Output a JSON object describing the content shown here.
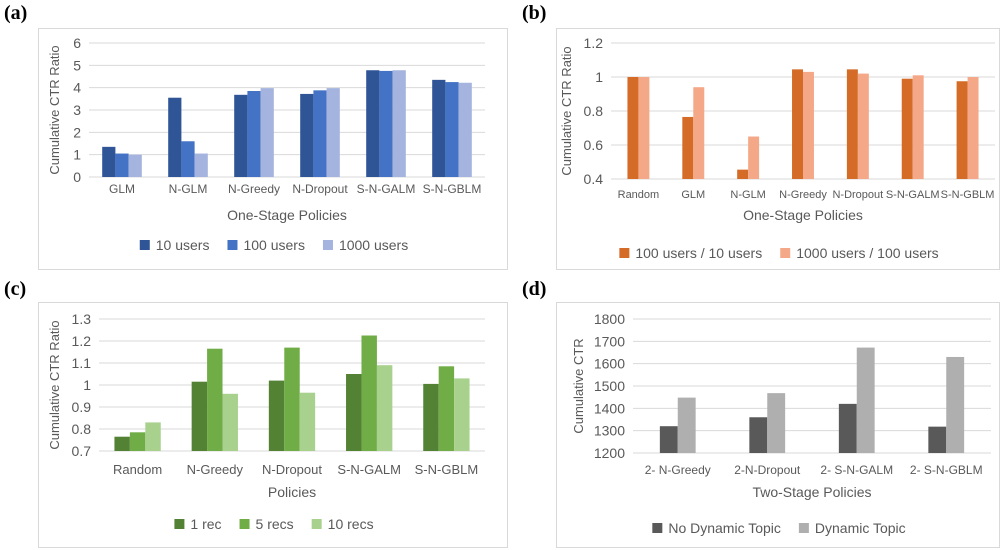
{
  "panels": [
    {
      "label": "(a)"
    },
    {
      "label": "(b)"
    },
    {
      "label": "(c)"
    },
    {
      "label": "(d)"
    }
  ],
  "chart_data": [
    {
      "type": "bar",
      "title": "",
      "xlabel": "One-Stage Policies",
      "ylabel": "Cumulative CTR Ratio",
      "ylim": [
        0,
        6
      ],
      "yticks": [
        "0",
        "1",
        "2",
        "3",
        "4",
        "5",
        "6"
      ],
      "grid": true,
      "legend": "bottom",
      "categories": [
        "GLM",
        "N-GLM",
        "N-Greedy",
        "N-Dropout",
        "S-N-GALM",
        "S-N-GBLM"
      ],
      "series": [
        {
          "name": "10 users",
          "color": "#2f5597",
          "values": [
            1.35,
            3.55,
            3.68,
            3.72,
            4.78,
            4.35
          ]
        },
        {
          "name": "100 users",
          "color": "#4472c4",
          "values": [
            1.05,
            1.6,
            3.85,
            3.88,
            4.75,
            4.25
          ]
        },
        {
          "name": "1000 users",
          "color": "#a5b4de",
          "values": [
            1.0,
            1.05,
            3.98,
            3.98,
            4.78,
            4.22
          ]
        }
      ]
    },
    {
      "type": "bar",
      "title": "",
      "xlabel": "One-Stage Policies",
      "ylabel": "Cumulative CTR Ratio",
      "ylim": [
        0.4,
        1.2
      ],
      "yticks": [
        "0.4",
        "0.6",
        "0.8",
        "1",
        "1.2"
      ],
      "grid": true,
      "legend": "bottom",
      "categories": [
        "Random",
        "GLM",
        "N-GLM",
        "N-Greedy",
        "N-Dropout",
        "S-N-GALM",
        "S-N-GBLM"
      ],
      "series": [
        {
          "name": "100 users / 10 users",
          "color": "#d46b26",
          "values": [
            1.0,
            0.765,
            0.455,
            1.045,
            1.045,
            0.99,
            0.975
          ]
        },
        {
          "name": "1000 users / 100 users",
          "color": "#f4a888",
          "values": [
            1.0,
            0.94,
            0.65,
            1.03,
            1.02,
            1.01,
            1.0
          ]
        }
      ]
    },
    {
      "type": "bar",
      "title": "",
      "xlabel": "Policies",
      "ylabel": "Cumulative CTR Ratio",
      "ylim": [
        0.7,
        1.3
      ],
      "yticks": [
        "0.7",
        "0.8",
        "0.9",
        "1",
        "1.1",
        "1.2",
        "1.3"
      ],
      "grid": true,
      "legend": "bottom",
      "categories": [
        "Random",
        "N-Greedy",
        "N-Dropout",
        "S-N-GALM",
        "S-N-GBLM"
      ],
      "series": [
        {
          "name": "1 rec",
          "color": "#548235",
          "values": [
            0.765,
            1.015,
            1.02,
            1.05,
            1.005
          ]
        },
        {
          "name": "5 recs",
          "color": "#70ad47",
          "values": [
            0.785,
            1.165,
            1.17,
            1.225,
            1.085
          ]
        },
        {
          "name": "10 recs",
          "color": "#a9d18e",
          "values": [
            0.83,
            0.96,
            0.965,
            1.09,
            1.03
          ]
        }
      ]
    },
    {
      "type": "bar",
      "title": "",
      "xlabel": "Two-Stage Policies",
      "ylabel": "Cumulative CTR",
      "ylim": [
        1200,
        1800
      ],
      "yticks": [
        "1200",
        "1300",
        "1400",
        "1500",
        "1600",
        "1700",
        "1800"
      ],
      "grid": true,
      "legend": "bottom",
      "categories": [
        "2- N-Greedy",
        "2-N-Dropout",
        "2- S-N-GALM",
        "2- S-N-GBLM"
      ],
      "series": [
        {
          "name": "No Dynamic Topic",
          "color": "#595959",
          "values": [
            1320,
            1360,
            1420,
            1318
          ]
        },
        {
          "name": "Dynamic Topic",
          "color": "#afafaf",
          "values": [
            1448,
            1468,
            1672,
            1630
          ]
        }
      ]
    }
  ]
}
